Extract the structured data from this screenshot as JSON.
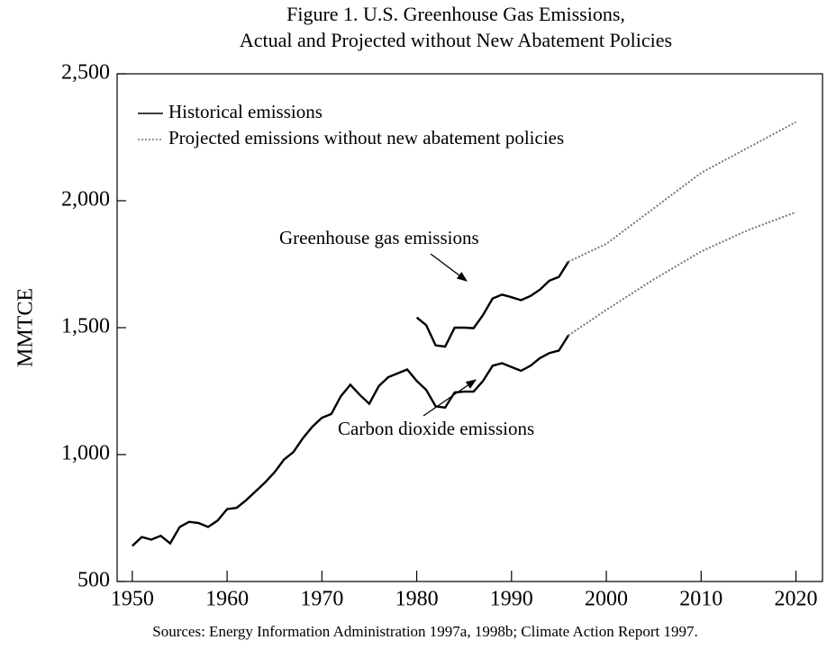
{
  "chart_data": {
    "type": "line",
    "title": [
      "Figure 1. U.S. Greenhouse Gas Emissions,",
      "Actual and Projected without New Abatement Policies"
    ],
    "ylabel": "MMTCE",
    "source": "Sources: Energy Information Administration 1997a, 1998b; Climate Action Report 1997.",
    "legend": [
      {
        "name": "Historical emissions",
        "style": "solid"
      },
      {
        "name": "Projected emissions without new abatement policies",
        "style": "dotted"
      }
    ],
    "annotations": [
      "Greenhouse gas emissions",
      "Carbon dioxide emissions"
    ],
    "xlim": [
      1948.4,
      2022.8
    ],
    "xticks": [
      1950,
      1960,
      1970,
      1980,
      1990,
      2000,
      2010,
      2020
    ],
    "ylim": [
      500,
      2500
    ],
    "yticks": [
      500,
      {
        "value": 1000,
        "label": "1,000"
      },
      {
        "value": 1500,
        "label": "1,500"
      },
      {
        "value": 2000,
        "label": "2,000"
      },
      {
        "value": 2500,
        "label": "2,500"
      }
    ],
    "series": [
      {
        "style": "solid",
        "color": "#000000",
        "x": [
          1950,
          1951,
          1952,
          1953,
          1954,
          1955,
          1956,
          1957,
          1958,
          1959,
          1960,
          1961,
          1962,
          1963,
          1964,
          1965,
          1966,
          1967,
          1968,
          1969,
          1970,
          1971,
          1972,
          1973,
          1974,
          1975,
          1976,
          1977,
          1978,
          1979,
          1980,
          1981,
          1982,
          1983,
          1984,
          1985,
          1986,
          1987,
          1988,
          1989,
          1990,
          1991,
          1992,
          1993,
          1994,
          1995,
          1996
        ],
        "values": [
          640,
          675,
          665,
          680,
          650,
          715,
          735,
          730,
          715,
          740,
          785,
          790,
          820,
          855,
          890,
          930,
          980,
          1010,
          1065,
          1110,
          1145,
          1160,
          1230,
          1275,
          1235,
          1200,
          1270,
          1305,
          1320,
          1335,
          1290,
          1255,
          1190,
          1185,
          1245,
          1248,
          1248,
          1290,
          1350,
          1360,
          1345,
          1330,
          1350,
          1380,
          1400,
          1410,
          1470
        ]
      },
      {
        "style": "solid",
        "color": "#000000",
        "x": [
          1980,
          1981,
          1982,
          1983,
          1984,
          1985,
          1986,
          1987,
          1988,
          1989,
          1990,
          1991,
          1992,
          1993,
          1994,
          1995,
          1996
        ],
        "values": [
          1540,
          1510,
          1430,
          1425,
          1500,
          1500,
          1498,
          1550,
          1615,
          1630,
          1620,
          1608,
          1625,
          1650,
          1685,
          1700,
          1760
        ]
      },
      {
        "style": "dotted",
        "color": "#777777",
        "x": [
          1996,
          2000,
          2005,
          2010,
          2015,
          2020
        ],
        "values": [
          1470,
          1570,
          1690,
          1800,
          1885,
          1955
        ]
      },
      {
        "style": "dotted",
        "color": "#777777",
        "x": [
          1996,
          2000,
          2005,
          2010,
          2015,
          2020
        ],
        "values": [
          1760,
          1830,
          1970,
          2110,
          2210,
          2310
        ]
      }
    ]
  }
}
